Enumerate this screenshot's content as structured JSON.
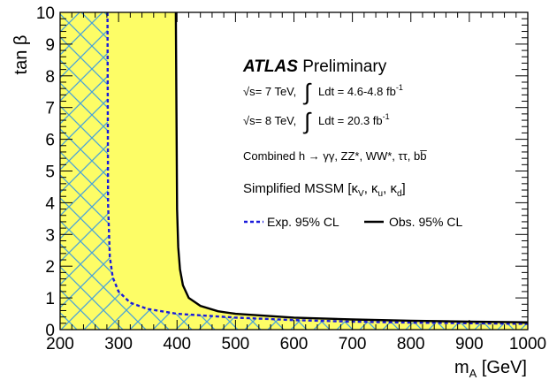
{
  "chart_data": {
    "type": "area",
    "xlabel_main": "m",
    "xlabel_sub": "A",
    "xlabel_unit": " [GeV]",
    "ylabel": "tan β",
    "xlim": [
      200,
      1000
    ],
    "ylim": [
      0,
      10
    ],
    "x_ticks": [
      "200",
      "300",
      "400",
      "500",
      "600",
      "700",
      "800",
      "900",
      "1000"
    ],
    "y_ticks": [
      "0",
      "1",
      "2",
      "3",
      "4",
      "5",
      "6",
      "7",
      "8",
      "9",
      "10"
    ],
    "grid": false,
    "series": [
      {
        "name": "Exp. 95% CL",
        "style": "dashed",
        "color": "#1a1adb",
        "x": [
          281,
          282,
          285,
          290,
          300,
          320,
          350,
          400,
          500,
          600,
          700,
          800,
          900,
          1000
        ],
        "y": [
          10,
          4.0,
          2.3,
          1.65,
          1.2,
          0.85,
          0.65,
          0.5,
          0.38,
          0.3,
          0.25,
          0.22,
          0.2,
          0.18
        ]
      },
      {
        "name": "Obs. 95% CL",
        "style": "solid",
        "color": "#000000",
        "x": [
          398,
          400,
          402,
          405,
          410,
          420,
          440,
          470,
          500,
          600,
          700,
          800,
          900,
          1000
        ],
        "y": [
          10,
          3.8,
          2.6,
          1.9,
          1.4,
          1.0,
          0.75,
          0.58,
          0.5,
          0.38,
          0.32,
          0.28,
          0.25,
          0.23
        ]
      }
    ],
    "fill_colors": {
      "expected_region": "#fdfd66",
      "hatch": "#4aa3d8"
    },
    "annotations": {
      "atlas": "ATLAS",
      "preliminary": "Preliminary",
      "lumi_7": {
        "sqrt": "√s= 7 TeV,",
        "integral": "∫",
        "text": "Ldt = 4.6-4.8 fb",
        "sup": "-1"
      },
      "lumi_8": {
        "sqrt": "√s= 8 TeV,",
        "integral": "∫",
        "text": "Ldt = 20.3 fb",
        "sup": "-1"
      },
      "channels": "Combined h → γγ, ZZ*, WW*, ττ, bb̅",
      "model": {
        "prefix": "Simplified MSSM [κ",
        "v": "V",
        "u_sep": ", κ",
        "u": "u",
        "d_sep": ", κ",
        "d": "d",
        "suffix": "]"
      }
    },
    "legend_position": "top-right, below text block"
  }
}
